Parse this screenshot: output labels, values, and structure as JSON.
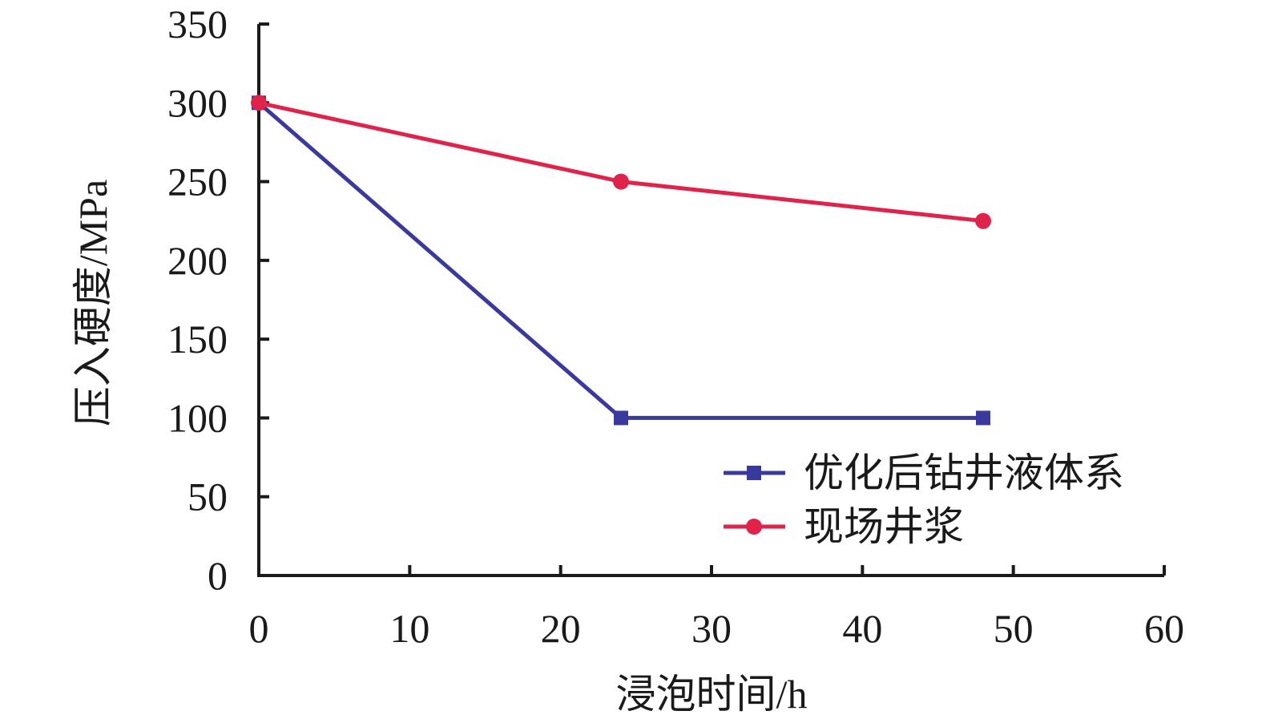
{
  "chart_data": {
    "type": "line",
    "title": "",
    "xlabel": "浸泡时间/h",
    "ylabel": "压入硬度/MPa",
    "xlim": [
      0,
      60
    ],
    "ylim": [
      0,
      350
    ],
    "x_ticks": [
      0,
      10,
      20,
      30,
      40,
      50,
      60
    ],
    "y_ticks": [
      0,
      50,
      100,
      150,
      200,
      250,
      300,
      350
    ],
    "x_tick_labels": [
      "0",
      "10",
      "20",
      "30",
      "40",
      "50",
      "60"
    ],
    "y_tick_labels": [
      "0",
      "50",
      "100",
      "150",
      "200",
      "250",
      "300",
      "350"
    ],
    "grid": false,
    "legend_position": "bottom-right",
    "series": [
      {
        "name": "优化后钻井液体系",
        "color": "#3a3a9e",
        "marker": "square",
        "x": [
          0,
          24,
          48
        ],
        "y": [
          300,
          100,
          100
        ]
      },
      {
        "name": "现场井浆",
        "color": "#e0234a",
        "marker": "circle",
        "x": [
          0,
          24,
          48
        ],
        "y": [
          300,
          250,
          225
        ]
      }
    ]
  }
}
